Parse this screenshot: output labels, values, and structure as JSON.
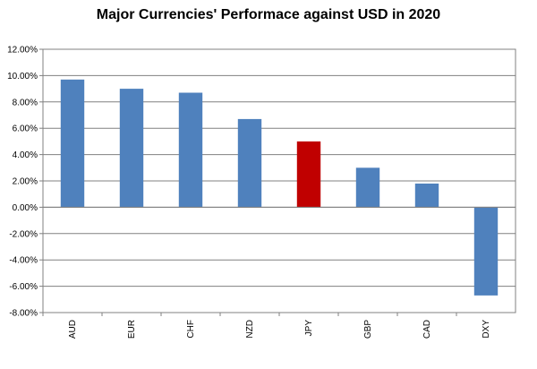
{
  "chart_data": {
    "type": "bar",
    "title": "Major Currencies' Performace against USD in 2020",
    "xlabel": "",
    "ylabel": "",
    "ylim": [
      -8,
      12
    ],
    "yticks": [
      "12.00%",
      "10.00%",
      "8.00%",
      "6.00%",
      "4.00%",
      "2.00%",
      "0.00%",
      "-2.00%",
      "-4.00%",
      "-6.00%",
      "-8.00%"
    ],
    "ytick_values": [
      12,
      10,
      8,
      6,
      4,
      2,
      0,
      -2,
      -4,
      -6,
      -8
    ],
    "grid": true,
    "categories": [
      "AUD",
      "EUR",
      "CHF",
      "NZD",
      "JPY",
      "GBP",
      "CAD",
      "DXY"
    ],
    "values": [
      9.7,
      9.0,
      8.7,
      6.7,
      5.0,
      3.0,
      1.8,
      -6.7
    ],
    "bar_colors": [
      "#4f81bd",
      "#4f81bd",
      "#4f81bd",
      "#4f81bd",
      "#c00000",
      "#4f81bd",
      "#4f81bd",
      "#4f81bd"
    ]
  }
}
